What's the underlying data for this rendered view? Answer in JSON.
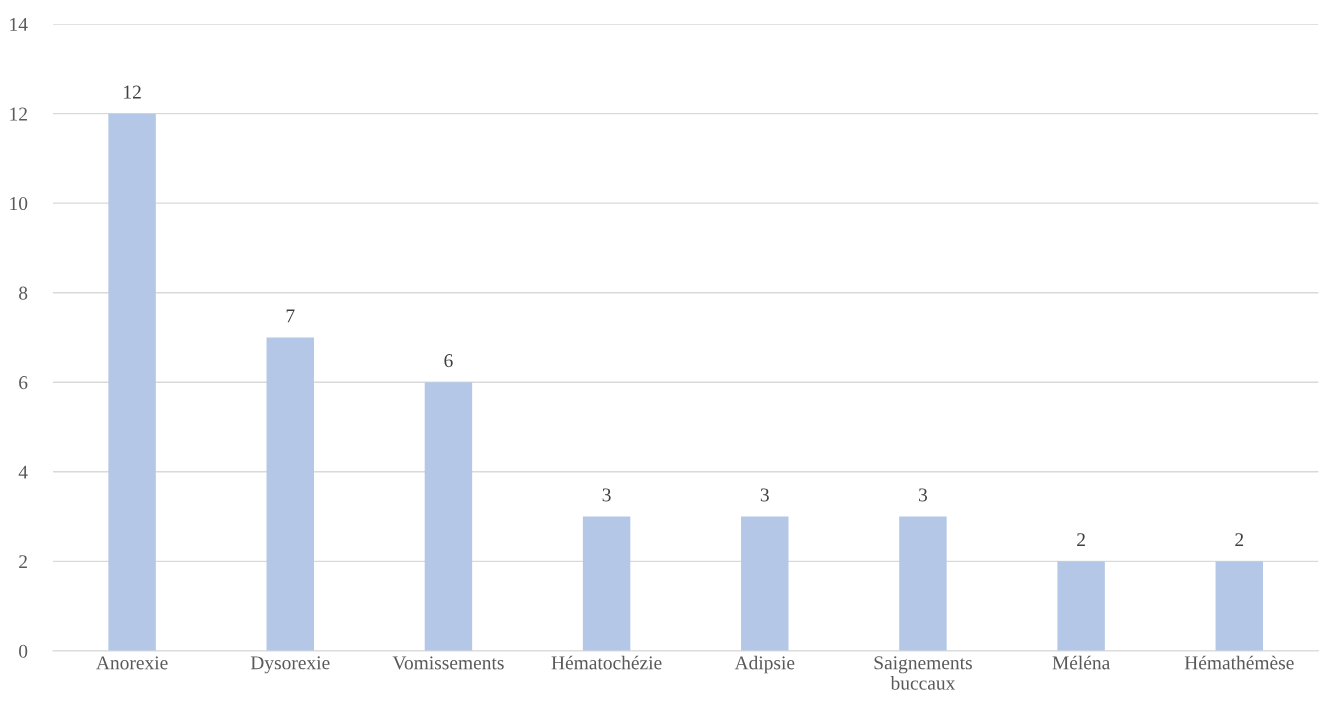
{
  "chart_data": {
    "type": "bar",
    "categories": [
      "Anorexie",
      "Dysorexie",
      "Vomissements",
      "Hématochézie",
      "Adipsie",
      "Saignements\nbuccaux",
      "Méléna",
      "Hémathémèse"
    ],
    "values": [
      12,
      7,
      6,
      3,
      3,
      3,
      2,
      2
    ],
    "color": "#b4c7e7",
    "ylim": [
      0,
      14
    ],
    "yticks": [
      0,
      2,
      4,
      6,
      8,
      10,
      12,
      14
    ],
    "grid": "y",
    "data_labels": true
  }
}
